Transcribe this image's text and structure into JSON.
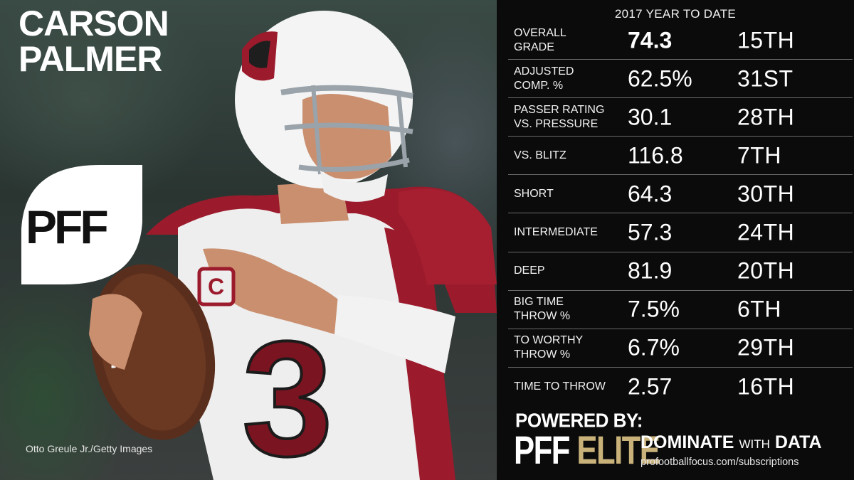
{
  "player": {
    "first_name": "CARSON",
    "last_name": "PALMER",
    "jersey_number": "3"
  },
  "photo_credit": "Otto Greule Jr./Getty Images",
  "logo": {
    "text": "PFF"
  },
  "header": "2017 YEAR TO DATE",
  "stats": [
    {
      "label": "OVERALL\nGRADE",
      "value": "74.3",
      "rank": "15TH",
      "bold": true
    },
    {
      "label": "ADJUSTED\nCOMP. %",
      "value": "62.5%",
      "rank": "31ST"
    },
    {
      "label": "PASSER RATING\nVS. PRESSURE",
      "value": "30.1",
      "rank": "28TH"
    },
    {
      "label": "VS. BLITZ",
      "value": "116.8",
      "rank": "7TH"
    },
    {
      "label": "SHORT",
      "value": "64.3",
      "rank": "30TH"
    },
    {
      "label": "INTERMEDIATE",
      "value": "57.3",
      "rank": "24TH"
    },
    {
      "label": "DEEP",
      "value": "81.9",
      "rank": "20TH"
    },
    {
      "label": "BIG TIME\nTHROW %",
      "value": "7.5%",
      "rank": "6TH"
    },
    {
      "label": "TO WORTHY\nTHROW %",
      "value": "6.7%",
      "rank": "29TH"
    },
    {
      "label": "TIME TO THROW",
      "value": "2.57",
      "rank": "16TH"
    }
  ],
  "footer": {
    "powered_by": "POWERED BY:",
    "brand_pff": "PFF",
    "brand_elite": "ELITE",
    "tagline_a": "DOMINATE",
    "tagline_with": "WITH",
    "tagline_b": "DATA",
    "url": "profootballfocus.com/subscriptions"
  },
  "colors": {
    "panel_bg": "#0b0b0b",
    "elite_gold": "#c9b27a",
    "jersey_red": "#9b1b2c",
    "divider": "#6a6a6a"
  }
}
